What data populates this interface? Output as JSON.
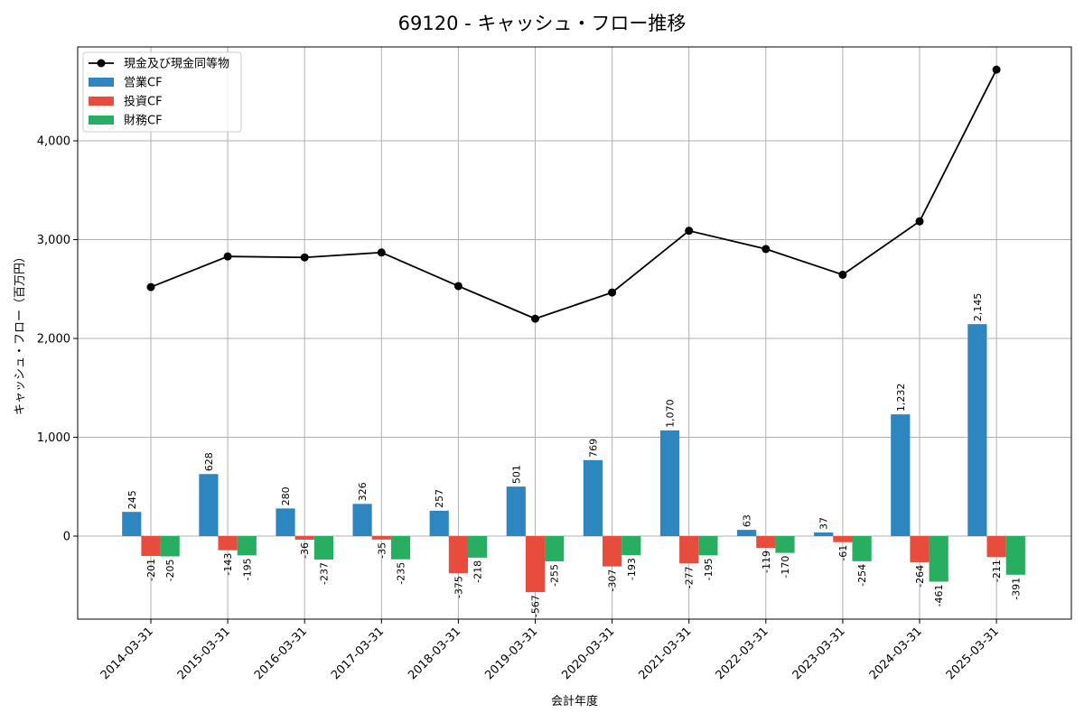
{
  "chart_data": {
    "type": "bar",
    "title": "69120 - キャッシュ・フロー推移",
    "xlabel": "会計年度",
    "ylabel": "キャッシュ・フロー（百万円）",
    "categories": [
      "2014-03-31",
      "2015-03-31",
      "2016-03-31",
      "2017-03-31",
      "2018-03-31",
      "2019-03-31",
      "2020-03-31",
      "2021-03-31",
      "2022-03-31",
      "2023-03-31",
      "2024-03-31",
      "2025-03-31"
    ],
    "ylim": [
      -840,
      4950
    ],
    "yticks": [
      0,
      1000,
      2000,
      3000,
      4000
    ],
    "ytick_labels": [
      "0",
      "1,000",
      "2,000",
      "3,000",
      "4,000"
    ],
    "grid": true,
    "legend_position": "top-left",
    "series": [
      {
        "name": "営業CF",
        "kind": "bar",
        "color": "#2e86c1",
        "values": [
          245,
          628,
          280,
          326,
          257,
          501,
          769,
          1070,
          63,
          37,
          1232,
          2145
        ],
        "labels": [
          "245",
          "628",
          "280",
          "326",
          "257",
          "501",
          "769",
          "1,070",
          "63",
          "37",
          "1,232",
          "2,145"
        ]
      },
      {
        "name": "投資CF",
        "kind": "bar",
        "color": "#e74c3c",
        "values": [
          -201,
          -143,
          -36,
          -35,
          -375,
          -567,
          -307,
          -277,
          -119,
          -61,
          -264,
          -211
        ],
        "labels": [
          "-201",
          "-143",
          "-36",
          "-35",
          "-375",
          "-567",
          "-307",
          "-277",
          "-119",
          "-61",
          "-264",
          "-211"
        ]
      },
      {
        "name": "財務CF",
        "kind": "bar",
        "color": "#27ae60",
        "values": [
          -205,
          -195,
          -237,
          -235,
          -218,
          -255,
          -193,
          -195,
          -170,
          -254,
          -461,
          -391
        ],
        "labels": [
          "-205",
          "-195",
          "-237",
          "-235",
          "-218",
          "-255",
          "-193",
          "-195",
          "-170",
          "-254",
          "-461",
          "-391"
        ]
      },
      {
        "name": "現金及び現金同等物",
        "kind": "line",
        "color": "#000000",
        "values": [
          2520,
          2830,
          2820,
          2870,
          2530,
          2200,
          2465,
          3090,
          2905,
          2645,
          3185,
          4720
        ]
      }
    ]
  }
}
